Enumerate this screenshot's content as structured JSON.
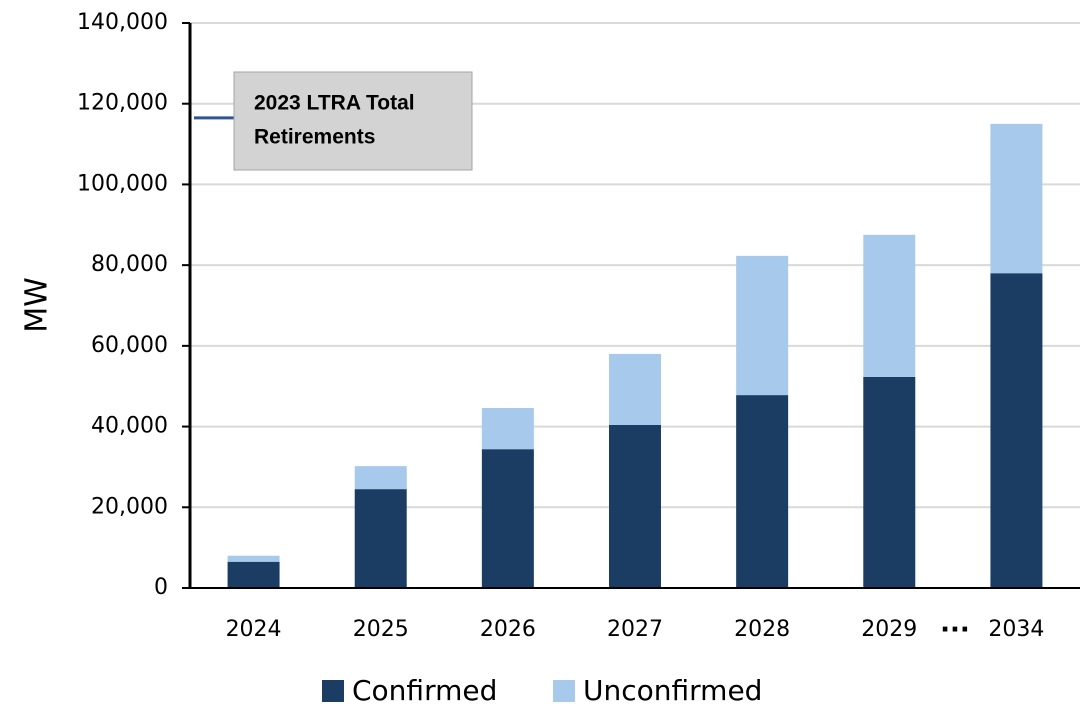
{
  "chart_data": {
    "type": "stacked_bar",
    "y_label": "MW",
    "categories": [
      "2024",
      "2025",
      "2026",
      "2027",
      "2028",
      "2029",
      "2034"
    ],
    "x_break_label": "...",
    "series": [
      {
        "name": "Confirmed",
        "color": "#1b3d63",
        "values": [
          6500,
          24500,
          34400,
          40400,
          47800,
          52300,
          78000
        ]
      },
      {
        "name": "Unconfirmed",
        "color": "#a7c9eb",
        "values": [
          1500,
          5700,
          10200,
          17600,
          34500,
          35200,
          37000
        ]
      }
    ],
    "ylim": [
      0,
      140000
    ],
    "yticks": [
      0,
      {
        "value": 20000,
        "label": "20,000"
      },
      {
        "value": 40000,
        "label": "40,000"
      },
      {
        "value": 60000,
        "label": "60,000"
      },
      {
        "value": 80000,
        "label": "80,000"
      },
      {
        "value": 100000,
        "label": "100,000"
      },
      {
        "value": 120000,
        "label": "120,000"
      },
      {
        "value": 140000,
        "label": "140,000"
      }
    ],
    "grid": true,
    "legend": "bottom",
    "annotation": {
      "lines": [
        "2023 LTRA Total",
        "Retirements"
      ],
      "value": 116500,
      "color": "#2f5597"
    }
  }
}
